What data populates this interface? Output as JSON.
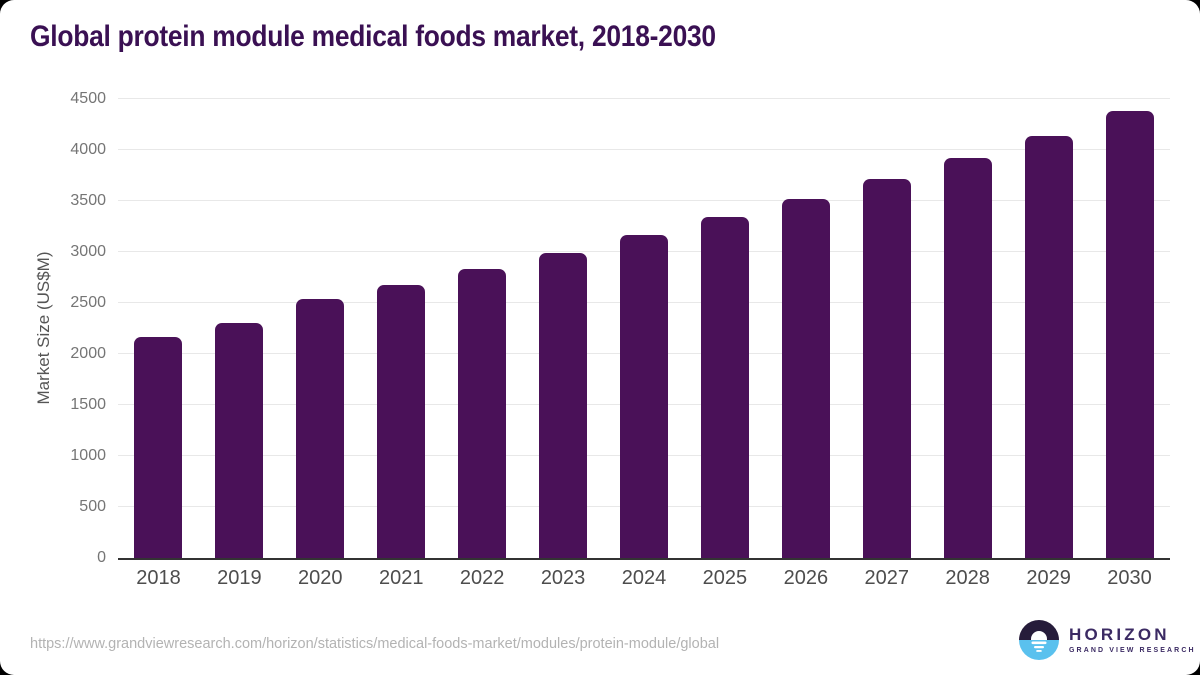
{
  "title": "Global protein module medical foods market, 2018-2030",
  "footer": {
    "source_url": "https://www.grandviewresearch.com/horizon/statistics/medical-foods-market/modules/protein-module/global",
    "logo": {
      "name": "HORIZON",
      "subtitle": "GRAND VIEW RESEARCH"
    }
  },
  "colors": {
    "bar": "#4a1158",
    "title": "#3a1053",
    "axis_label": "#555555",
    "tick_label": "#757575",
    "x_tick_label": "#4d4d4d",
    "gridline": "#e8e8e8",
    "axis_line": "#333333",
    "footer_text": "#b3b3b3",
    "logo_text": "#3b2a63",
    "logo_dark": "#261c3a",
    "logo_blue": "#5ac1ee"
  },
  "chart_data": {
    "type": "bar",
    "title": "Global protein module medical foods market, 2018-2030",
    "categories": [
      "2018",
      "2019",
      "2020",
      "2021",
      "2022",
      "2023",
      "2024",
      "2025",
      "2026",
      "2027",
      "2028",
      "2029",
      "2030"
    ],
    "values": [
      2170,
      2305,
      2535,
      2675,
      2835,
      2990,
      3170,
      3340,
      3520,
      3715,
      3925,
      4140,
      4380
    ],
    "xlabel": "",
    "ylabel": "Market Size (US$M)",
    "ylim": [
      0,
      4500
    ],
    "ytick_step": 500,
    "grid": true,
    "legend": false,
    "bar_color": "#4a1158"
  }
}
